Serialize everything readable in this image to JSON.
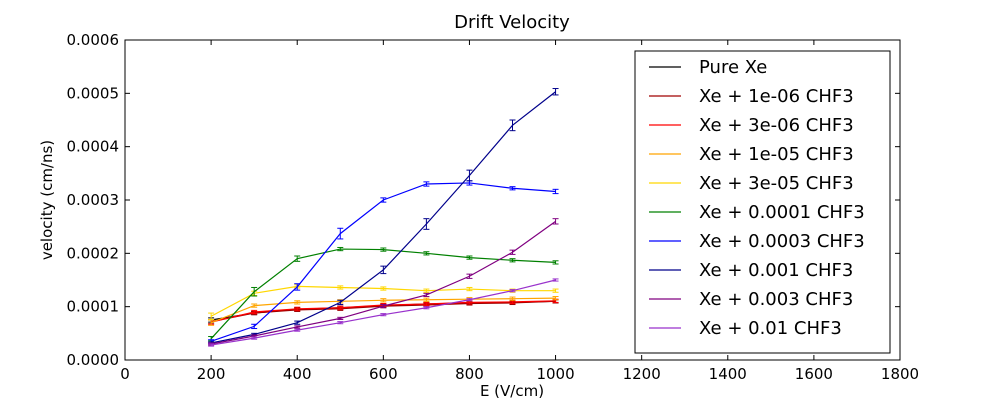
{
  "chart_data": {
    "type": "line",
    "title": "Drift Velocity",
    "xlabel": "E (V/cm)",
    "ylabel": "velocity (cm/ns)",
    "xlim": [
      0,
      1800
    ],
    "ylim": [
      0,
      0.0006
    ],
    "xticks": [
      0,
      200,
      400,
      600,
      800,
      1000,
      1200,
      1400,
      1600,
      1800
    ],
    "xtick_labels": [
      "0",
      "200",
      "400",
      "600",
      "800",
      "1000",
      "1200",
      "1400",
      "1600",
      "1800"
    ],
    "yticks": [
      0,
      0.0001,
      0.0002,
      0.0003,
      0.0004,
      0.0005,
      0.0006
    ],
    "ytick_labels": [
      "0.0000",
      "0.0001",
      "0.0002",
      "0.0003",
      "0.0004",
      "0.0005",
      "0.0006"
    ],
    "grid": false,
    "legend_position": "top-right",
    "x": [
      200,
      300,
      400,
      500,
      600,
      700,
      800,
      900,
      1000
    ],
    "series": [
      {
        "name": "Pure Xe",
        "color": "#000000",
        "values": [
          7.5e-05,
          8.8e-05,
          9.5e-05,
          9.8e-05,
          0.000102,
          0.000105,
          0.000107,
          0.000108,
          0.00011
        ],
        "errors": [
          4e-06,
          3e-06,
          3e-06,
          3e-06,
          3e-06,
          3e-06,
          3e-06,
          3e-06,
          3e-06
        ]
      },
      {
        "name": "Xe + 1e-06 CHF3",
        "color": "#a00000",
        "values": [
          7.2e-05,
          8.8e-05,
          9.4e-05,
          9.6e-05,
          0.000101,
          0.000103,
          0.000106,
          0.000107,
          0.00011
        ],
        "errors": [
          4e-06,
          3e-06,
          3e-06,
          3e-06,
          3e-06,
          3e-06,
          3e-06,
          3e-06,
          3e-06
        ]
      },
      {
        "name": "Xe + 3e-06 CHF3",
        "color": "#ff0000",
        "values": [
          7.1e-05,
          9e-05,
          9.6e-05,
          9.8e-05,
          0.000103,
          0.000105,
          0.000108,
          0.000109,
          0.000111
        ],
        "errors": [
          4e-06,
          3e-06,
          3e-06,
          3e-06,
          3e-06,
          3e-06,
          3e-06,
          3e-06,
          3e-06
        ]
      },
      {
        "name": "Xe + 1e-05 CHF3",
        "color": "#ffa500",
        "values": [
          7e-05,
          0.000102,
          0.000108,
          0.00011,
          0.000112,
          0.000113,
          0.000114,
          0.000115,
          0.000116
        ],
        "errors": [
          5e-06,
          3e-06,
          3e-06,
          3e-06,
          3e-06,
          3e-06,
          3e-06,
          3e-06,
          3e-06
        ]
      },
      {
        "name": "Xe + 3e-05 CHF3",
        "color": "#ffd700",
        "values": [
          8.2e-05,
          0.000125,
          0.000138,
          0.000136,
          0.000134,
          0.00013,
          0.000133,
          0.00013,
          0.00013
        ],
        "errors": [
          6e-06,
          4e-06,
          3e-06,
          3e-06,
          3e-06,
          3e-06,
          3e-06,
          3e-06,
          3e-06
        ]
      },
      {
        "name": "Xe + 0.0001 CHF3",
        "color": "#008000",
        "values": [
          4e-05,
          0.000128,
          0.00019,
          0.000208,
          0.000207,
          0.0002,
          0.000192,
          0.000187,
          0.000183
        ],
        "errors": [
          4e-06,
          8e-06,
          5e-06,
          3e-06,
          3e-06,
          3e-06,
          3e-06,
          3e-06,
          3e-06
        ]
      },
      {
        "name": "Xe + 0.0003 CHF3",
        "color": "#0000ff",
        "values": [
          3.5e-05,
          6.3e-05,
          0.000137,
          0.000237,
          0.0003,
          0.00033,
          0.000332,
          0.000322,
          0.000316
        ],
        "errors": [
          3e-06,
          4e-06,
          6e-06,
          1e-05,
          4e-06,
          4e-06,
          4e-06,
          3e-06,
          4e-06
        ]
      },
      {
        "name": "Xe + 0.001 CHF3",
        "color": "#00008b",
        "values": [
          3.2e-05,
          4.8e-05,
          7e-05,
          0.000108,
          0.000169,
          0.000255,
          0.000346,
          0.00044,
          0.000503
        ],
        "errors": [
          2e-06,
          2e-06,
          3e-06,
          4e-06,
          7e-06,
          1e-05,
          1e-05,
          1e-05,
          6e-06
        ]
      },
      {
        "name": "Xe + 0.003 CHF3",
        "color": "#800080",
        "values": [
          3e-05,
          4.5e-05,
          6.2e-05,
          7.8e-05,
          0.000101,
          0.000122,
          0.000157,
          0.000202,
          0.00026
        ],
        "errors": [
          2e-06,
          2e-06,
          2e-06,
          2e-06,
          3e-06,
          3e-06,
          4e-06,
          4e-06,
          5e-06
        ]
      },
      {
        "name": "Xe + 0.01 CHF3",
        "color": "#9932cc",
        "values": [
          2.8e-05,
          4.1e-05,
          5.6e-05,
          7e-05,
          8.5e-05,
          9.8e-05,
          0.000113,
          0.00013,
          0.00015
        ],
        "errors": [
          2e-06,
          2e-06,
          2e-06,
          2e-06,
          2e-06,
          2e-06,
          2e-06,
          2e-06,
          2e-06
        ]
      }
    ]
  }
}
